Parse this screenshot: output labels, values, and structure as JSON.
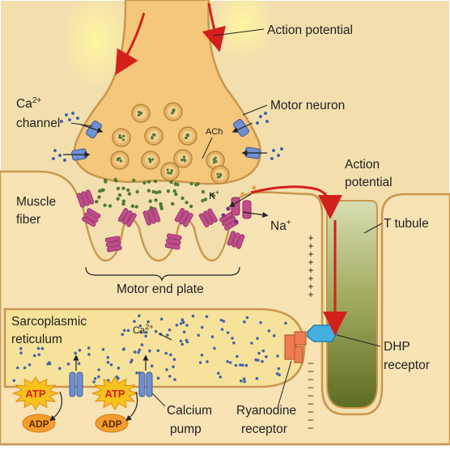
{
  "labels": {
    "action_potential_top": "Action potential",
    "ca_channel_line1": "Ca",
    "ca_channel_sup": "2+",
    "ca_channel_line2": "channel",
    "motor_neuron": "Motor neuron",
    "ach": "ACh",
    "action_potential_right_line1": "Action",
    "action_potential_right_line2": "potential",
    "muscle_fiber_line1": "Muscle",
    "muscle_fiber_line2": "fiber",
    "k_ion": "K",
    "k_sup": "+",
    "na_ion": "Na",
    "na_sup": "+",
    "t_tubule": "T tubule",
    "motor_end_plate": "Motor end plate",
    "sr_line1": "Sarcoplasmic",
    "sr_line2": "reticulum",
    "ca_inner": "Ca",
    "ca_inner_sup": "2+",
    "dhp_line1": "DHP",
    "dhp_line2": "receptor",
    "atp": "ATP",
    "adp": "ADP",
    "calcium_pump_line1": "Calcium",
    "calcium_pump_line2": "pump",
    "ryanodine_line1": "Ryanodine",
    "ryanodine_line2": "receptor",
    "plus_sign": "+",
    "minus_sign": "–"
  },
  "colors": {
    "background": "#f3dfae",
    "neuron_fill": "#f4c77a",
    "membrane": "#c9964e",
    "vesicle": "#e9b467",
    "ach_dot": "#4f7a35",
    "sr_fill": "#f6e29a",
    "ca_dot": "#4463a8",
    "t_tubule_top": "#d6dcae",
    "t_tubule_bottom": "#66752a",
    "arrow_red": "#d3201c",
    "receptor_pink": "#c24c8c",
    "dhp_blue": "#45b0df",
    "ryr_orange": "#ee7c51",
    "pump_blue": "#6f8fd0",
    "atp_burst": "#f6c21d",
    "atp_text": "#d3201c",
    "adp_fill": "#f49d2e"
  }
}
